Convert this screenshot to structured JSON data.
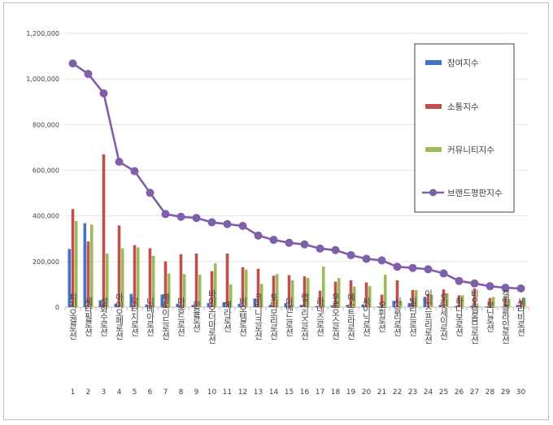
{
  "chart_data": {
    "type": "bar",
    "title": "",
    "xlabel": "",
    "ylabel": "",
    "ylim": [
      0,
      1200000
    ],
    "yticks": [
      0,
      200000,
      400000,
      600000,
      800000,
      1000000,
      1200000
    ],
    "ytick_labels": [
      "0",
      "200,000",
      "400,000",
      "600,000",
      "800,000",
      "1,000,000",
      "1,200,000"
    ],
    "grid": true,
    "legend_position": "top-right",
    "categories": [
      "피지오겔로션",
      "세타필로션",
      "설화수로션",
      "아이오페로션",
      "닥터지로션",
      "니베아로션",
      "제로이드로션",
      "마몽드로션",
      "한율로션",
      "바이오더마로션",
      "헤라로션",
      "비오템로션",
      "크리니크로션",
      "토니모리로션",
      "아벤느로션",
      "랩시리즈로션",
      "라네즈로션",
      "우르오스로션",
      "에스트라로션",
      "싸이닉로션",
      "오휘로션",
      "시슬리로션",
      "빌리프로션",
      "이니스프리로션",
      "오딧세이로션",
      "하다보로션",
      "비오템옴므로션",
      "보닌로션",
      "캘빈클라인로션",
      "세라비로션"
    ],
    "ranks": [
      "1",
      "2",
      "3",
      "4",
      "5",
      "6",
      "7",
      "8",
      "9",
      "10",
      "11",
      "12",
      "13",
      "14",
      "15",
      "16",
      "17",
      "18",
      "19",
      "20",
      "21",
      "22",
      "23",
      "24",
      "25",
      "26",
      "27",
      "28",
      "29",
      "30"
    ],
    "series": [
      {
        "name": "참여지수",
        "color": "#4472c4",
        "values": [
          255000,
          368000,
          30000,
          15000,
          58000,
          12000,
          55000,
          15000,
          10000,
          18000,
          22000,
          15000,
          38000,
          10000,
          18000,
          10000,
          5000,
          8000,
          10000,
          12000,
          3000,
          28000,
          18000,
          45000,
          10000,
          5000,
          5000,
          3000,
          2000,
          10000
        ]
      },
      {
        "name": "소통지수",
        "color": "#c0504d",
        "values": [
          430000,
          288000,
          670000,
          358000,
          272000,
          258000,
          200000,
          232000,
          235000,
          158000,
          235000,
          175000,
          168000,
          138000,
          140000,
          135000,
          72000,
          112000,
          118000,
          108000,
          55000,
          118000,
          75000,
          58000,
          78000,
          52000,
          82000,
          40000,
          42000,
          28000
        ]
      },
      {
        "name": "커뮤니티지수",
        "color": "#9bbb59",
        "values": [
          378000,
          362000,
          235000,
          258000,
          262000,
          225000,
          148000,
          145000,
          142000,
          192000,
          100000,
          165000,
          102000,
          145000,
          118000,
          128000,
          178000,
          128000,
          90000,
          92000,
          142000,
          28000,
          75000,
          55000,
          62000,
          52000,
          5000,
          45000,
          35000,
          40000
        ]
      },
      {
        "name": "브랜드평판지수",
        "color": "#7f5fa9",
        "type": "line",
        "values": [
          1068000,
          1022000,
          937000,
          637000,
          596000,
          501000,
          408000,
          396000,
          391000,
          372000,
          364000,
          356000,
          314000,
          295000,
          282000,
          275000,
          257000,
          250000,
          228000,
          212000,
          205000,
          177000,
          172000,
          166000,
          148000,
          115000,
          104000,
          92000,
          85000,
          82000
        ]
      }
    ]
  }
}
